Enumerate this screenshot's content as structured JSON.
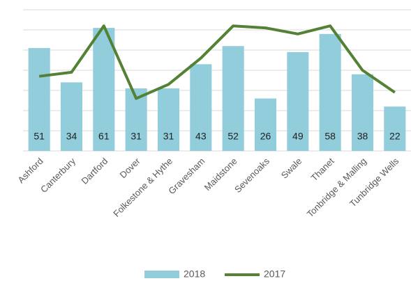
{
  "chart_data": {
    "type": "bar-line",
    "categories": [
      "Ashford",
      "Canterbury",
      "Dartford",
      "Dover",
      "Folkestone & Hythe",
      "Gravesham",
      "Maidstone",
      "Sevenoaks",
      "Swale",
      "Thanet",
      "Tonbridge & Malling",
      "Tunbridge Wells"
    ],
    "series": [
      {
        "name": "2018",
        "type": "bar",
        "color": "#92cddc",
        "values": [
          51,
          34,
          61,
          31,
          31,
          43,
          52,
          26,
          49,
          58,
          38,
          22
        ]
      },
      {
        "name": "2017",
        "type": "line",
        "color": "#548235",
        "values": [
          37,
          39,
          62,
          26,
          33,
          46,
          62,
          61,
          58,
          62,
          40,
          29
        ]
      }
    ],
    "ylim": [
      0,
      70
    ],
    "yticks": [
      0,
      10,
      20,
      30,
      40,
      50,
      60,
      70
    ],
    "grid": true,
    "legend": "bottom"
  }
}
